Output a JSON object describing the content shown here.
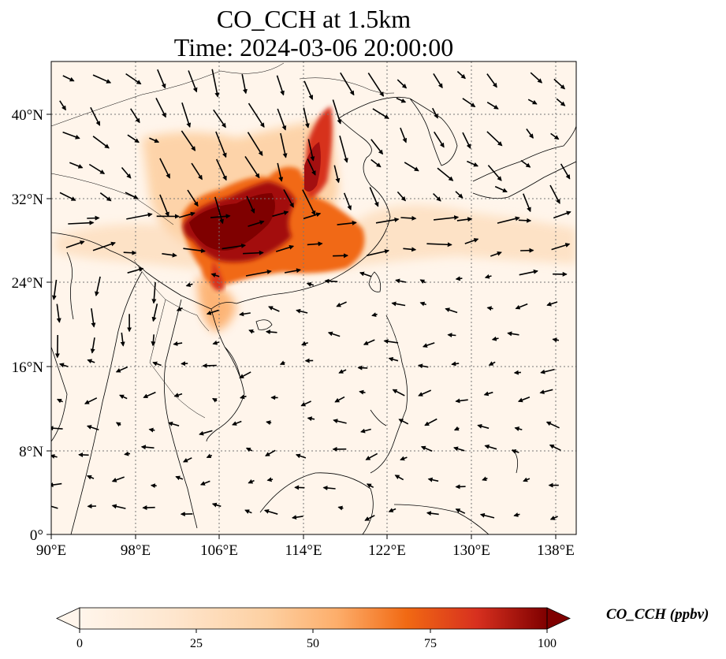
{
  "title": "CO_CCH at 1.5km",
  "subtitle": "Time: 2024-03-06 20:00:00",
  "map": {
    "lon_range": [
      90,
      140
    ],
    "lat_range": [
      0,
      45
    ],
    "lon_ticks": [
      "90°E",
      "98°E",
      "106°E",
      "114°E",
      "122°E",
      "130°E",
      "138°E"
    ],
    "lat_ticks": [
      "0°",
      "8°N",
      "16°N",
      "24°N",
      "32°N",
      "40°N"
    ],
    "gridlines": "dotted",
    "field": "CO concentration at 1.5 km with wind vectors",
    "plume_colors": [
      "#fff5eb",
      "#fdd0a2",
      "#fd8d3c",
      "#d94801",
      "#7f0000"
    ]
  },
  "colorbar": {
    "label": "CO_CCH (ppbv)",
    "ticks": [
      "0",
      "25",
      "50",
      "75",
      "100"
    ],
    "range": [
      0,
      100
    ],
    "extend": "both",
    "colormap": "OrRd"
  }
}
